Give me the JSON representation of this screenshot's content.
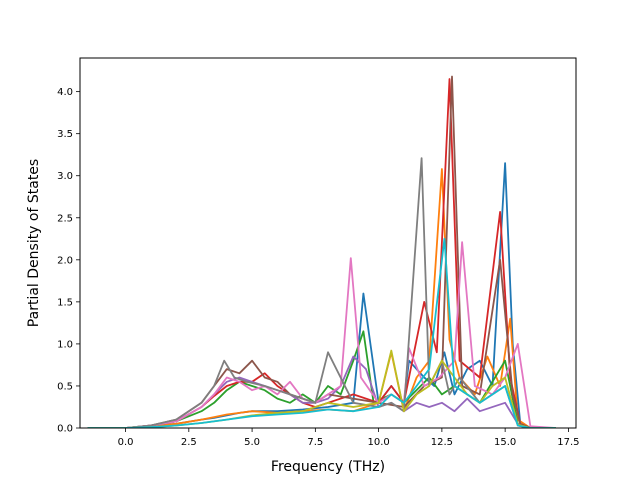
{
  "chart_data": {
    "type": "line",
    "title": "",
    "xlabel": "Frequency (THz)",
    "ylabel": "Partial Density of States",
    "xlim": [
      -1.8,
      17.8
    ],
    "ylim": [
      0.0,
      4.4
    ],
    "xticks": [
      "0.0",
      "2.5",
      "5.0",
      "7.5",
      "10.0",
      "12.5",
      "15.0",
      "17.5"
    ],
    "xtick_values": [
      0.0,
      2.5,
      5.0,
      7.5,
      10.0,
      12.5,
      15.0,
      17.5
    ],
    "yticks": [
      "0.0",
      "0.5",
      "1.0",
      "1.5",
      "2.0",
      "2.5",
      "3.0",
      "3.5",
      "4.0"
    ],
    "ytick_values": [
      0.0,
      0.5,
      1.0,
      1.5,
      2.0,
      2.5,
      3.0,
      3.5,
      4.0
    ],
    "grid": false,
    "legend": "none",
    "series": [
      {
        "color": "#1f77b4",
        "x": [
          -1.5,
          0,
          1,
          2,
          3,
          3.5,
          4,
          4.5,
          5,
          5.5,
          6,
          7,
          8,
          9,
          9.4,
          10,
          10.5,
          11,
          11.2,
          11.8,
          12.2,
          12.6,
          13,
          13.5,
          14,
          14.5,
          15,
          15.3,
          15.6,
          16,
          17
        ],
        "y": [
          0,
          0,
          0.02,
          0.05,
          0.1,
          0.12,
          0.15,
          0.18,
          0.2,
          0.2,
          0.2,
          0.22,
          0.25,
          0.3,
          1.6,
          0.3,
          0.5,
          0.3,
          0.8,
          0.6,
          0.5,
          0.9,
          0.4,
          0.7,
          0.8,
          0.5,
          3.15,
          1.0,
          0.05,
          0,
          0
        ]
      },
      {
        "color": "#ff7f0e",
        "x": [
          -1.5,
          0,
          1,
          2,
          3,
          3.5,
          4,
          4.5,
          5,
          5.5,
          6,
          7,
          8,
          9,
          10,
          10.5,
          11,
          11.5,
          12,
          12.5,
          12.8,
          13.2,
          13.8,
          14.3,
          14.8,
          15.2,
          15.5,
          16,
          17
        ],
        "y": [
          0,
          0,
          0.02,
          0.05,
          0.1,
          0.13,
          0.16,
          0.18,
          0.2,
          0.19,
          0.18,
          0.2,
          0.22,
          0.2,
          0.3,
          0.9,
          0.2,
          0.6,
          0.8,
          3.08,
          1.05,
          0.6,
          0.4,
          0.85,
          0.5,
          1.3,
          0.1,
          0,
          0
        ]
      },
      {
        "color": "#2ca02c",
        "x": [
          -1.5,
          0,
          1,
          2,
          3,
          3.5,
          4,
          4.5,
          5,
          5.5,
          6,
          6.5,
          7,
          7.5,
          8,
          8.5,
          9,
          9.4,
          9.8,
          10.5,
          11,
          12,
          12.5,
          13,
          14,
          15,
          15.5,
          16,
          17
        ],
        "y": [
          0,
          0,
          0.03,
          0.08,
          0.2,
          0.3,
          0.45,
          0.55,
          0.5,
          0.45,
          0.35,
          0.3,
          0.4,
          0.3,
          0.5,
          0.4,
          0.8,
          1.15,
          0.3,
          0.4,
          0.3,
          0.6,
          0.4,
          0.5,
          0.3,
          0.8,
          0.05,
          0,
          0
        ]
      },
      {
        "color": "#d62728",
        "x": [
          -1.5,
          0,
          1,
          2,
          3,
          3.5,
          4,
          4.5,
          5,
          5.5,
          6,
          6.5,
          7,
          7.5,
          8,
          9,
          10,
          10.5,
          11,
          11.8,
          12.3,
          12.8,
          13.2,
          14,
          14.8,
          15.2,
          15.6,
          16,
          17
        ],
        "y": [
          0,
          0,
          0.03,
          0.08,
          0.25,
          0.38,
          0.5,
          0.55,
          0.55,
          0.65,
          0.5,
          0.4,
          0.3,
          0.25,
          0.3,
          0.4,
          0.3,
          0.5,
          0.3,
          1.5,
          0.9,
          4.15,
          0.8,
          0.6,
          2.57,
          0.6,
          0.05,
          0,
          0
        ]
      },
      {
        "color": "#9467bd",
        "x": [
          -1.5,
          0,
          1,
          2,
          3,
          3.5,
          4,
          4.5,
          5,
          5.5,
          6,
          6.5,
          7,
          7.5,
          8,
          8.5,
          9,
          9.5,
          10,
          10.5,
          11,
          11.5,
          12,
          12.5,
          13,
          13.5,
          14,
          15,
          15.5,
          16,
          17
        ],
        "y": [
          0,
          0,
          0.03,
          0.08,
          0.25,
          0.4,
          0.55,
          0.6,
          0.55,
          0.5,
          0.45,
          0.4,
          0.3,
          0.3,
          0.35,
          0.5,
          0.85,
          0.7,
          0.25,
          0.3,
          0.2,
          0.3,
          0.25,
          0.3,
          0.2,
          0.35,
          0.2,
          0.3,
          0.05,
          0,
          0
        ]
      },
      {
        "color": "#8c564b",
        "x": [
          -1.5,
          0,
          1,
          2,
          3,
          3.5,
          4,
          4.5,
          5,
          5.5,
          6,
          6.5,
          7,
          7.5,
          8,
          9,
          10,
          11,
          11.8,
          12.5,
          12.9,
          13.3,
          14,
          14.8,
          15.3,
          15.6,
          16,
          17
        ],
        "y": [
          0,
          0,
          0.03,
          0.1,
          0.3,
          0.5,
          0.7,
          0.65,
          0.8,
          0.6,
          0.55,
          0.4,
          0.35,
          0.3,
          0.4,
          0.35,
          0.3,
          0.25,
          0.5,
          0.6,
          4.18,
          0.5,
          0.4,
          2.0,
          0.4,
          0.05,
          0,
          0
        ]
      },
      {
        "color": "#e377c2",
        "x": [
          -1.5,
          0,
          1,
          2,
          3,
          3.5,
          4,
          4.5,
          5,
          5.5,
          6,
          6.5,
          7,
          7.5,
          8,
          8.5,
          8.9,
          9.3,
          10,
          10.5,
          11,
          11.2,
          11.8,
          12.4,
          13,
          13.3,
          13.8,
          14.5,
          15,
          15.5,
          16,
          17
        ],
        "y": [
          0,
          0,
          0.03,
          0.08,
          0.25,
          0.4,
          0.6,
          0.55,
          0.45,
          0.5,
          0.4,
          0.55,
          0.35,
          0.3,
          0.4,
          0.5,
          2.02,
          0.6,
          0.3,
          0.4,
          0.3,
          0.95,
          0.5,
          0.6,
          0.8,
          2.21,
          0.5,
          0.4,
          0.6,
          1.0,
          0.02,
          0
        ]
      },
      {
        "color": "#7f7f7f",
        "x": [
          -1.5,
          0,
          1,
          2,
          3,
          3.5,
          3.9,
          4.3,
          4.8,
          5.5,
          6,
          6.5,
          7,
          7.5,
          8,
          9,
          10,
          10.5,
          11,
          11.7,
          12,
          12.5,
          12.8,
          13.2,
          14,
          15,
          15.5,
          16,
          17
        ],
        "y": [
          0,
          0,
          0.03,
          0.1,
          0.3,
          0.5,
          0.8,
          0.6,
          0.55,
          0.5,
          0.45,
          0.4,
          0.35,
          0.3,
          0.9,
          0.3,
          0.25,
          0.3,
          0.2,
          3.21,
          0.5,
          0.8,
          0.4,
          0.6,
          0.3,
          0.5,
          0.03,
          0,
          0
        ]
      },
      {
        "color": "#bcbd22",
        "x": [
          -1.5,
          0,
          1,
          2,
          3,
          4,
          5,
          6,
          7,
          8,
          9,
          10,
          10.5,
          11,
          11.5,
          12,
          12.5,
          13,
          13.5,
          14,
          14.5,
          15,
          15.5,
          16,
          17
        ],
        "y": [
          0,
          0,
          0.01,
          0.03,
          0.06,
          0.1,
          0.15,
          0.18,
          0.2,
          0.3,
          0.25,
          0.3,
          0.92,
          0.2,
          0.4,
          0.5,
          0.8,
          0.6,
          0.4,
          0.3,
          0.5,
          0.6,
          0.04,
          0,
          0
        ]
      },
      {
        "color": "#17becf",
        "x": [
          -1.5,
          0,
          1,
          2,
          3,
          4,
          5,
          6,
          7,
          8,
          9,
          10,
          10.5,
          11,
          11.5,
          12,
          12.6,
          13,
          13.5,
          14,
          14.5,
          15,
          15.5,
          16,
          17
        ],
        "y": [
          0,
          0,
          0.01,
          0.03,
          0.06,
          0.1,
          0.14,
          0.16,
          0.18,
          0.22,
          0.2,
          0.25,
          0.4,
          0.3,
          0.5,
          0.7,
          2.25,
          0.5,
          0.4,
          0.3,
          0.4,
          0.5,
          0.03,
          0,
          0
        ]
      }
    ]
  }
}
